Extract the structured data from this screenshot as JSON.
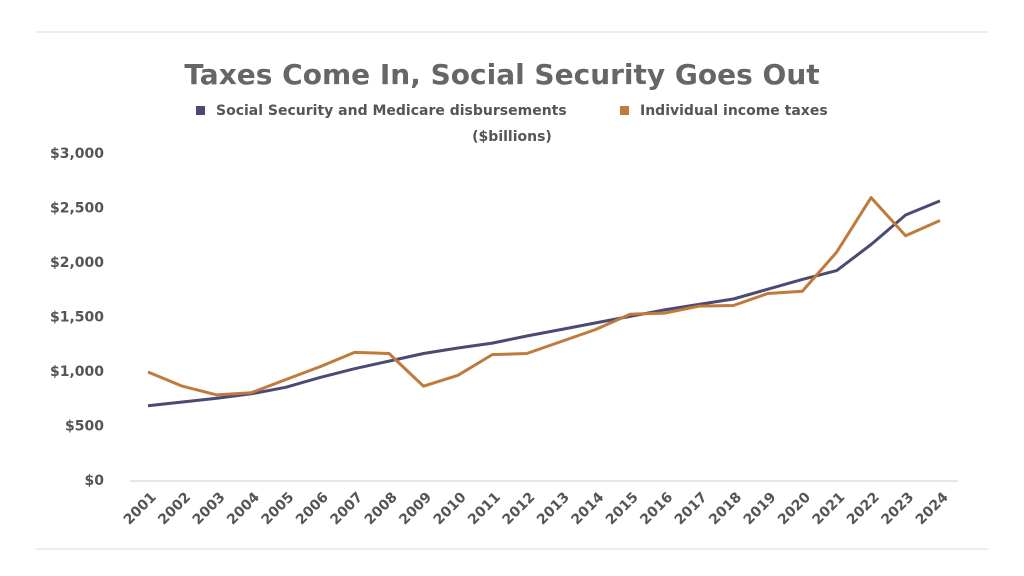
{
  "chart_data": {
    "type": "line",
    "title": "Taxes Come In, Social Security Goes Out",
    "subtitle": "($billions)",
    "categories": [
      "2001",
      "2002",
      "2003",
      "2004",
      "2005",
      "2006",
      "2007",
      "2008",
      "2009",
      "2010",
      "2011",
      "2012",
      "2013",
      "2014",
      "2015",
      "2016",
      "2017",
      "2018",
      "2019",
      "2020",
      "2021",
      "2022",
      "2023",
      "2024"
    ],
    "series": [
      {
        "name": "Social Security and Medicare disbursements",
        "color": "#4b4a75",
        "values": [
          690,
          725,
          760,
          800,
          860,
          950,
          1030,
          1100,
          1170,
          1220,
          1265,
          1330,
          1390,
          1450,
          1510,
          1570,
          1620,
          1670,
          1760,
          1850,
          1930,
          2170,
          2440,
          2570
        ]
      },
      {
        "name": "Individual income taxes",
        "color": "#c07a3c",
        "values": [
          1000,
          870,
          790,
          810,
          930,
          1050,
          1180,
          1170,
          870,
          970,
          1160,
          1170,
          1280,
          1390,
          1530,
          1540,
          1605,
          1610,
          1720,
          1740,
          2100,
          2600,
          2250,
          2390
        ]
      }
    ],
    "ylim": [
      0,
      3000
    ],
    "yticks": [
      {
        "value": 0,
        "label": "$0"
      },
      {
        "value": 500,
        "label": "$500"
      },
      {
        "value": 1000,
        "label": "$1,000"
      },
      {
        "value": 1500,
        "label": "$1,500"
      },
      {
        "value": 2000,
        "label": "$2,000"
      },
      {
        "value": 2500,
        "label": "$2,500"
      },
      {
        "value": 3000,
        "label": "$3,000"
      }
    ],
    "grid": false,
    "legend": "top"
  }
}
